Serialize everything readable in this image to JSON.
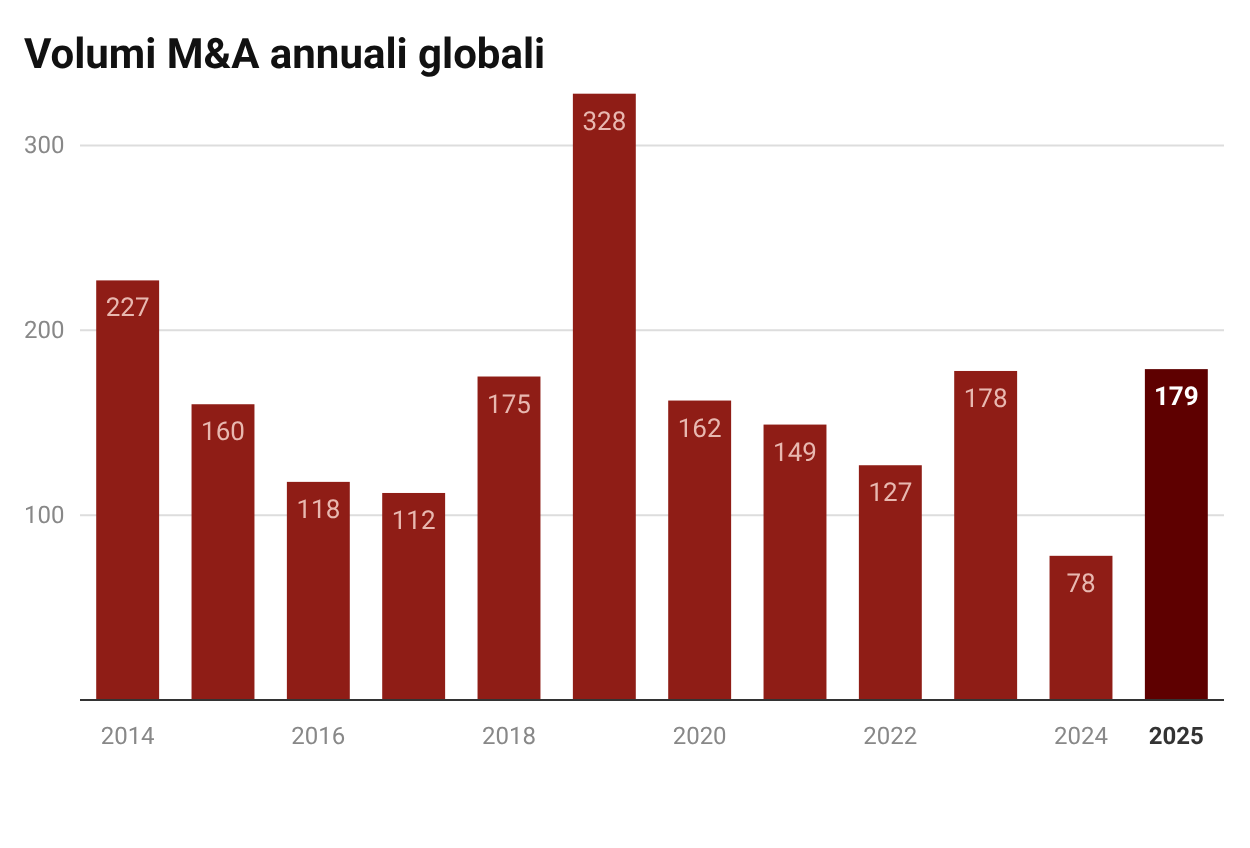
{
  "chart_data": {
    "type": "bar",
    "title": "Volumi M&A annuali globali",
    "categories": [
      "2014",
      null,
      "2016",
      null,
      "2018",
      null,
      "2020",
      null,
      "2022",
      null,
      "2024",
      "2025"
    ],
    "values": [
      227,
      160,
      118,
      112,
      175,
      328,
      162,
      149,
      127,
      178,
      78,
      179
    ],
    "colors": [
      "#8f1d16",
      "#8f1d16",
      "#8f1d16",
      "#8f1d16",
      "#8f1d16",
      "#8f1d16",
      "#8f1d16",
      "#8f1d16",
      "#8f1d16",
      "#8f1d16",
      "#8f1d16",
      "#5e0000"
    ],
    "ylim": [
      0,
      330
    ],
    "yticks": [
      100,
      200,
      300
    ],
    "grid": "y",
    "data_labels": true
  }
}
